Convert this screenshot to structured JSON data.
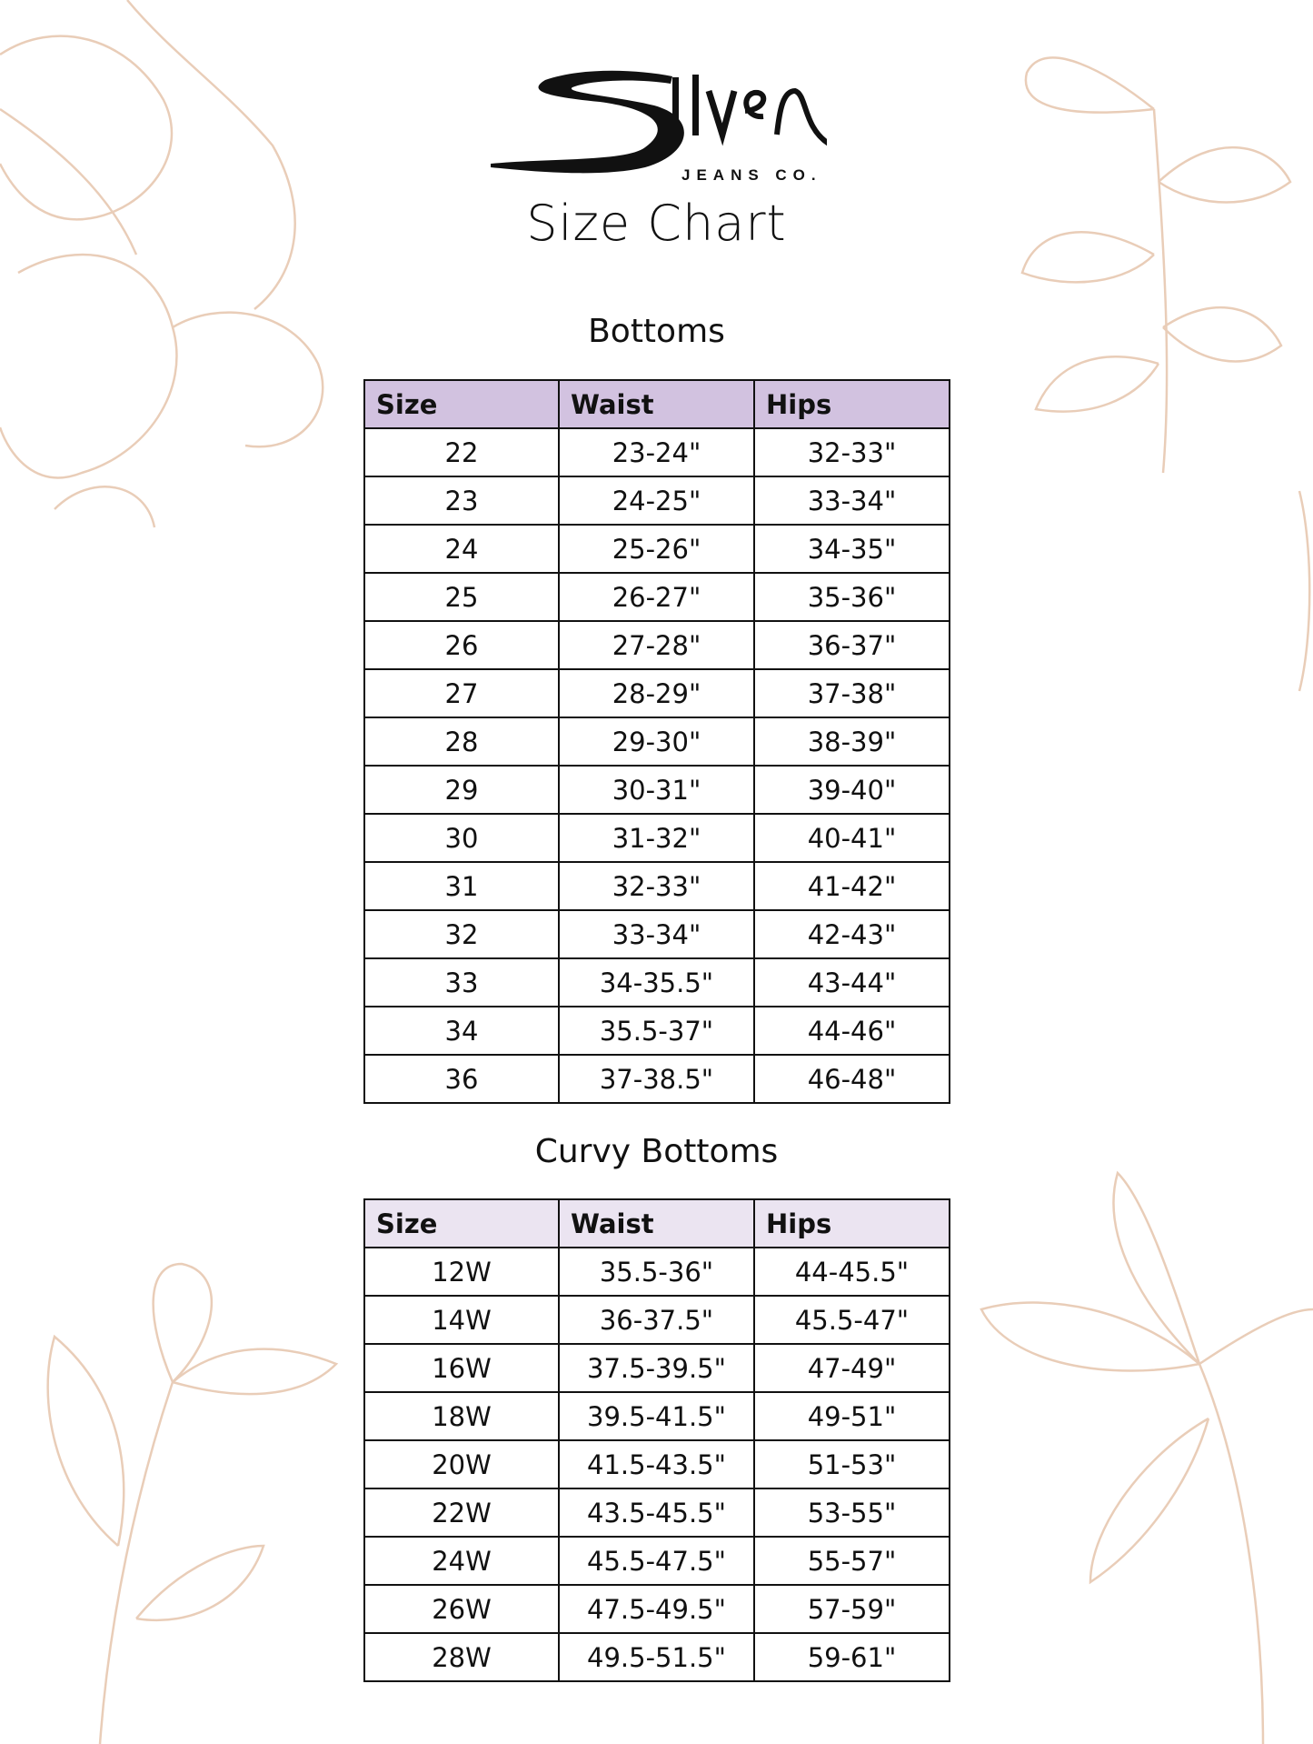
{
  "brand": {
    "logo_text": "Silver",
    "logo_subtext": "JEANS CO."
  },
  "title": "Size Chart",
  "colors": {
    "bottoms_header": "#d2c2e0",
    "curvy_header": "#ebe4f1",
    "floral_line": "#e9cdb8"
  },
  "bottoms": {
    "heading": "Bottoms",
    "columns": [
      "Size",
      "Waist",
      "Hips"
    ],
    "rows": [
      [
        "22",
        "23-24\"",
        "32-33\""
      ],
      [
        "23",
        "24-25\"",
        "33-34\""
      ],
      [
        "24",
        "25-26\"",
        "34-35\""
      ],
      [
        "25",
        "26-27\"",
        "35-36\""
      ],
      [
        "26",
        "27-28\"",
        "36-37\""
      ],
      [
        "27",
        "28-29\"",
        "37-38\""
      ],
      [
        "28",
        "29-30\"",
        "38-39\""
      ],
      [
        "29",
        "30-31\"",
        "39-40\""
      ],
      [
        "30",
        "31-32\"",
        "40-41\""
      ],
      [
        "31",
        "32-33\"",
        "41-42\""
      ],
      [
        "32",
        "33-34\"",
        "42-43\""
      ],
      [
        "33",
        "34-35.5\"",
        "43-44\""
      ],
      [
        "34",
        "35.5-37\"",
        "44-46\""
      ],
      [
        "36",
        "37-38.5\"",
        "46-48\""
      ]
    ]
  },
  "curvy": {
    "heading": "Curvy Bottoms",
    "columns": [
      "Size",
      "Waist",
      "Hips"
    ],
    "rows": [
      [
        "12W",
        "35.5-36\"",
        "44-45.5\""
      ],
      [
        "14W",
        "36-37.5\"",
        "45.5-47\""
      ],
      [
        "16W",
        "37.5-39.5\"",
        "47-49\""
      ],
      [
        "18W",
        "39.5-41.5\"",
        "49-51\""
      ],
      [
        "20W",
        "41.5-43.5\"",
        "51-53\""
      ],
      [
        "22W",
        "43.5-45.5\"",
        "53-55\""
      ],
      [
        "24W",
        "45.5-47.5\"",
        "55-57\""
      ],
      [
        "26W",
        "47.5-49.5\"",
        "57-59\""
      ],
      [
        "28W",
        "49.5-51.5\"",
        "59-61\""
      ]
    ]
  }
}
